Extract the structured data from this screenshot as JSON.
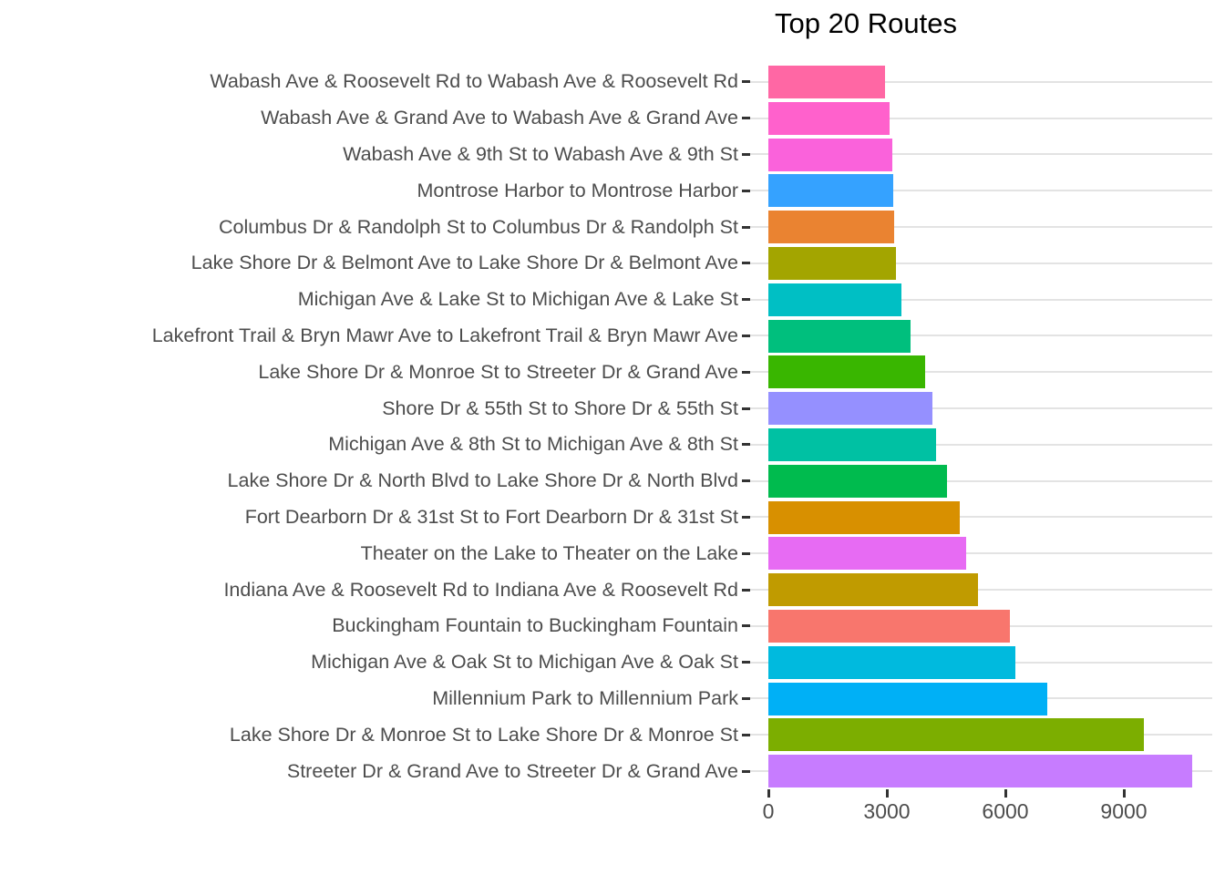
{
  "chart_data": {
    "type": "bar",
    "orientation": "horizontal",
    "title": "Top 20 Routes",
    "xlabel": "",
    "ylabel": "",
    "xlim": [
      0,
      11000
    ],
    "grid": "horizontal-major-only",
    "legend": "none",
    "x_ticks": [
      {
        "label": "0",
        "value": 0
      },
      {
        "label": "3000",
        "value": 3000
      },
      {
        "label": "6000",
        "value": 6000
      },
      {
        "label": "9000",
        "value": 9000
      }
    ],
    "categories": [
      "Wabash Ave & Roosevelt Rd to Wabash Ave & Roosevelt Rd",
      "Wabash Ave & Grand Ave to Wabash Ave & Grand Ave",
      "Wabash Ave & 9th St to Wabash Ave & 9th St",
      "Montrose Harbor to Montrose Harbor",
      "Columbus Dr & Randolph St to Columbus Dr & Randolph St",
      "Lake Shore Dr & Belmont Ave to Lake Shore Dr & Belmont Ave",
      "Michigan Ave & Lake St to Michigan Ave & Lake St",
      "Lakefront Trail & Bryn Mawr Ave to Lakefront Trail & Bryn Mawr Ave",
      "Lake Shore Dr & Monroe St to Streeter Dr & Grand Ave",
      "Shore Dr & 55th St to Shore Dr & 55th St",
      "Michigan Ave & 8th St to Michigan Ave & 8th St",
      "Lake Shore Dr & North Blvd to Lake Shore Dr & North Blvd",
      "Fort Dearborn Dr & 31st St to Fort Dearborn Dr & 31st St",
      "Theater on the Lake to Theater on the Lake",
      "Indiana Ave & Roosevelt Rd to Indiana Ave & Roosevelt Rd",
      "Buckingham Fountain to Buckingham Fountain",
      "Michigan Ave & Oak St to Michigan Ave & Oak St",
      "Millennium Park to Millennium Park",
      "Lake Shore Dr & Monroe St to Lake Shore Dr & Monroe St",
      "Streeter Dr & Grand Ave to Streeter Dr & Grand Ave"
    ],
    "values": [
      2960,
      3060,
      3140,
      3150,
      3180,
      3230,
      3370,
      3610,
      3960,
      4150,
      4250,
      4520,
      4850,
      5000,
      5310,
      6110,
      6250,
      7050,
      9500,
      10730
    ],
    "bar_colors": [
      "#FF67A4",
      "#FF61CC",
      "#FA62DB",
      "#35A2FF",
      "#EA8331",
      "#A3A500",
      "#00BFC4",
      "#00BF7D",
      "#39B600",
      "#9590FF",
      "#00C1A3",
      "#00BB4E",
      "#D89000",
      "#E76BF3",
      "#C09B00",
      "#F8766D",
      "#00BADE",
      "#00B0F6",
      "#7CAE00",
      "#C77CFF"
    ]
  },
  "colors": {
    "background": "#FFFFFF",
    "grid": "#E3E3E3",
    "axis_text": "#4D4D4D",
    "tick_mark": "#333333",
    "title_text": "#000000"
  }
}
